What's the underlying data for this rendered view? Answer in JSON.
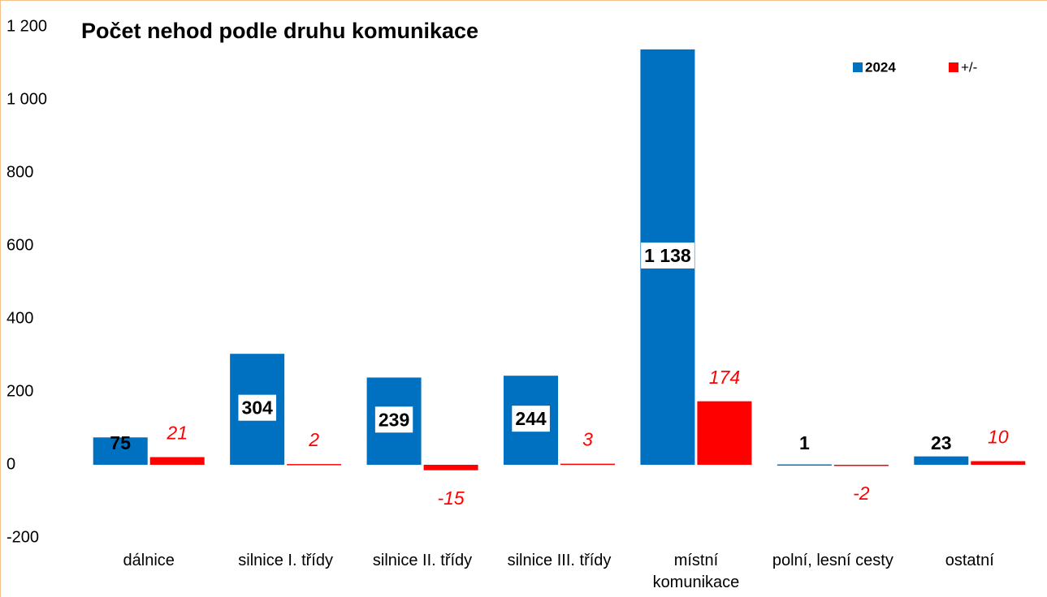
{
  "chart_data": {
    "type": "bar",
    "title": "Počet nehod podle druhu komunikace",
    "categories": [
      "dálnice",
      "silnice I. třídy",
      "silnice II. třídy",
      "silnice III. třídy",
      "místní komunikace",
      "polní, lesní cesty",
      "ostatní"
    ],
    "series": [
      {
        "name": "2024",
        "color": "#0070c0",
        "values": [
          75,
          304,
          239,
          244,
          1138,
          1,
          23
        ],
        "value_labels": [
          "75",
          "304",
          "239",
          "244",
          "1 138",
          "1",
          "23"
        ]
      },
      {
        "name": "+/-",
        "color": "#ff0000",
        "values": [
          21,
          2,
          -15,
          3,
          174,
          -2,
          10
        ]
      }
    ],
    "ylim": [
      -200,
      1200
    ],
    "yticks": [
      -200,
      0,
      200,
      400,
      600,
      800,
      {
        "value": 1000,
        "label": "1 000"
      },
      {
        "value": 1200,
        "label": "1 200"
      }
    ],
    "grid": false,
    "legend": "top-right"
  }
}
